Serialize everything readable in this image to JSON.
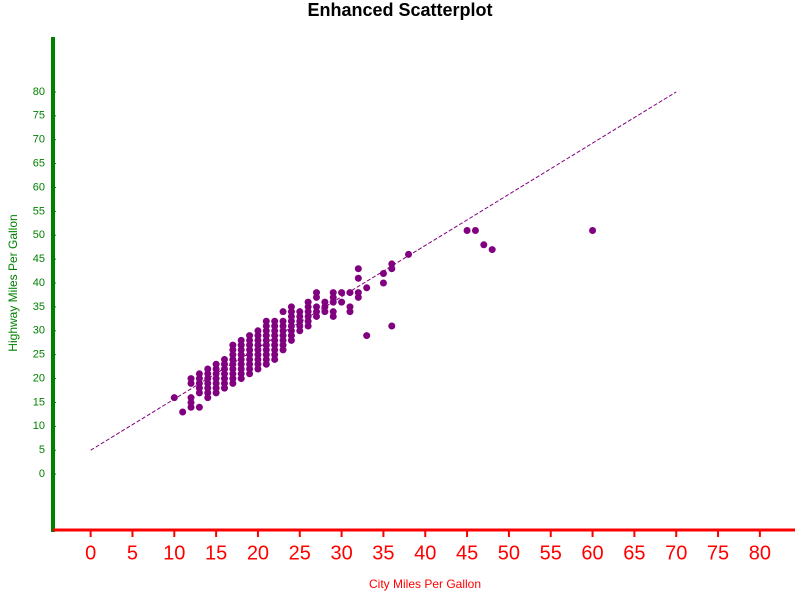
{
  "chart_data": {
    "type": "scatter",
    "title": "Enhanced Scatterplot",
    "xlabel": "City Miles Per Gallon",
    "ylabel": "Highway Miles Per Gallon",
    "xlim": [
      -4.5,
      84.2
    ],
    "ylim": [
      -11.7,
      91.5
    ],
    "xticks": [
      0,
      5,
      10,
      15,
      20,
      25,
      30,
      35,
      40,
      45,
      50,
      55,
      60,
      65,
      70,
      75,
      80
    ],
    "yticks": [
      0,
      5,
      10,
      15,
      20,
      25,
      30,
      35,
      40,
      45,
      50,
      55,
      60,
      65,
      70,
      75,
      80
    ],
    "color": "#800080",
    "x": [
      10,
      11,
      12,
      12,
      12,
      12,
      12,
      13,
      13,
      13,
      13,
      13,
      13,
      14,
      14,
      14,
      14,
      14,
      14,
      14,
      15,
      15,
      15,
      15,
      15,
      15,
      15,
      16,
      16,
      16,
      16,
      16,
      16,
      16,
      17,
      17,
      17,
      17,
      17,
      17,
      17,
      17,
      17,
      18,
      18,
      18,
      18,
      18,
      18,
      18,
      18,
      18,
      19,
      19,
      19,
      19,
      19,
      19,
      19,
      19,
      19,
      20,
      20,
      20,
      20,
      20,
      20,
      20,
      20,
      20,
      21,
      21,
      21,
      21,
      21,
      21,
      21,
      21,
      21,
      21,
      22,
      22,
      22,
      22,
      22,
      22,
      22,
      22,
      22,
      23,
      23,
      23,
      23,
      23,
      23,
      23,
      23,
      24,
      24,
      24,
      24,
      24,
      24,
      24,
      24,
      25,
      25,
      25,
      25,
      25,
      26,
      26,
      26,
      26,
      26,
      26,
      27,
      27,
      27,
      27,
      27,
      28,
      28,
      28,
      29,
      29,
      29,
      29,
      29,
      30,
      30,
      31,
      31,
      31,
      32,
      32,
      32,
      32,
      33,
      33,
      35,
      35,
      36,
      36,
      36,
      38,
      45,
      46,
      47,
      48,
      60
    ],
    "y": [
      16,
      13,
      14,
      15,
      16,
      19,
      20,
      14,
      17,
      18,
      19,
      20,
      21,
      16,
      17,
      18,
      19,
      20,
      21,
      22,
      17,
      18,
      19,
      20,
      21,
      22,
      23,
      18,
      19,
      20,
      21,
      22,
      23,
      24,
      19,
      20,
      21,
      22,
      23,
      24,
      25,
      26,
      27,
      20,
      21,
      22,
      23,
      24,
      25,
      26,
      27,
      28,
      21,
      22,
      23,
      24,
      25,
      26,
      27,
      28,
      29,
      22,
      23,
      24,
      25,
      26,
      27,
      28,
      29,
      30,
      23,
      24,
      25,
      26,
      27,
      28,
      29,
      30,
      31,
      32,
      24,
      25,
      26,
      27,
      28,
      29,
      30,
      31,
      32,
      26,
      27,
      28,
      29,
      30,
      31,
      32,
      34,
      28,
      29,
      30,
      31,
      32,
      33,
      34,
      35,
      30,
      31,
      32,
      33,
      34,
      31,
      32,
      33,
      34,
      35,
      36,
      33,
      34,
      35,
      37,
      38,
      34,
      35,
      36,
      33,
      34,
      36,
      37,
      38,
      36,
      38,
      34,
      35,
      38,
      37,
      38,
      41,
      43,
      29,
      39,
      40,
      42,
      31,
      43,
      44,
      46,
      51,
      51,
      48,
      47,
      51
    ],
    "fit_line": {
      "x": [
        0,
        70
      ],
      "y": [
        5,
        80
      ],
      "color": "#800080"
    }
  }
}
